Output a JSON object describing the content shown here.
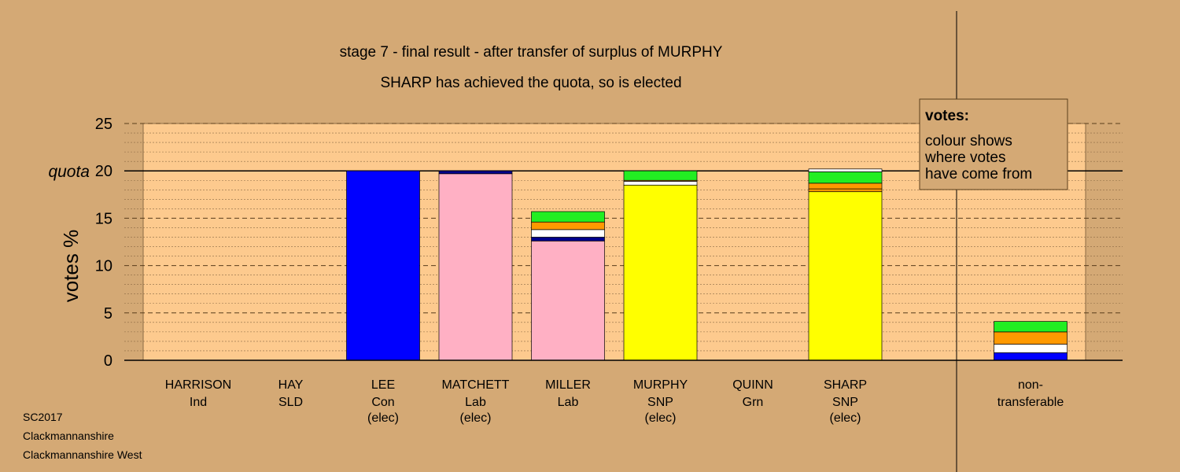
{
  "chart_data": {
    "type": "bar",
    "stacked": true,
    "title": "stage 7 - final result - after transfer of surplus of MURPHY",
    "subtitle": "SHARP has achieved the quota, so is elected",
    "ylabel": "votes %",
    "ylim": [
      0,
      25
    ],
    "yticks": [
      0,
      5,
      10,
      15,
      20,
      25
    ],
    "quota": {
      "value": 20,
      "label": "quota"
    },
    "grid": true,
    "legend": {
      "placement": "top-right",
      "title": "votes:",
      "lines": [
        "colour shows",
        "where votes",
        "have come from"
      ]
    },
    "categories": [
      {
        "name": "HARRISON",
        "party": "Ind",
        "status": ""
      },
      {
        "name": "HAY",
        "party": "SLD",
        "status": ""
      },
      {
        "name": "LEE",
        "party": "Con",
        "status": "(elec)"
      },
      {
        "name": "MATCHETT",
        "party": "Lab",
        "status": "(elec)"
      },
      {
        "name": "MILLER",
        "party": "Lab",
        "status": ""
      },
      {
        "name": "MURPHY",
        "party": "SNP",
        "status": "(elec)"
      },
      {
        "name": "QUINN",
        "party": "Grn",
        "status": ""
      },
      {
        "name": "SHARP",
        "party": "SNP",
        "status": "(elec)"
      }
    ],
    "nontransferable": {
      "line1": "non-",
      "line2": "transferable"
    },
    "colors": {
      "Con": "#0000ff",
      "Lab": "#ffb0c4",
      "SNP": "#ffff00",
      "SLD": "#ff9900",
      "Grn": "#22ee22",
      "Ind": "#ffffff",
      "nav": "#00008b",
      "plot_bg": "#fdca8e",
      "page_bg": "#d4a975"
    },
    "bars": [
      [],
      [],
      [
        {
          "color": "Con",
          "value": 20.0
        }
      ],
      [
        {
          "color": "Lab",
          "value": 19.7
        },
        {
          "color": "nav",
          "value": 0.3
        }
      ],
      [
        {
          "color": "Lab",
          "value": 12.6
        },
        {
          "color": "nav",
          "value": 0.4
        },
        {
          "color": "Ind",
          "value": 0.8
        },
        {
          "color": "SLD",
          "value": 0.8
        },
        {
          "color": "Grn",
          "value": 1.1
        }
      ],
      [
        {
          "color": "SNP",
          "value": 18.5
        },
        {
          "color": "Ind",
          "value": 0.4
        },
        {
          "color": "SLD",
          "value": 0.1
        },
        {
          "color": "Grn",
          "value": 1.0
        }
      ],
      [],
      [
        {
          "color": "SNP",
          "value": 17.8
        },
        {
          "color": "SLD",
          "value": 0.3
        },
        {
          "color": "SLD",
          "value": 0.6
        },
        {
          "color": "Grn",
          "value": 1.2
        },
        {
          "color": "Ind",
          "value": 0.3
        }
      ]
    ],
    "nontransferable_bar": [
      {
        "color": "Con",
        "value": 0.8
      },
      {
        "color": "Ind",
        "value": 0.9
      },
      {
        "color": "SLD",
        "value": 1.3
      },
      {
        "color": "Grn",
        "value": 1.1
      }
    ]
  },
  "footer": {
    "line1": "SC2017",
    "line2": "Clackmannanshire",
    "line3": "Clackmannanshire West"
  }
}
